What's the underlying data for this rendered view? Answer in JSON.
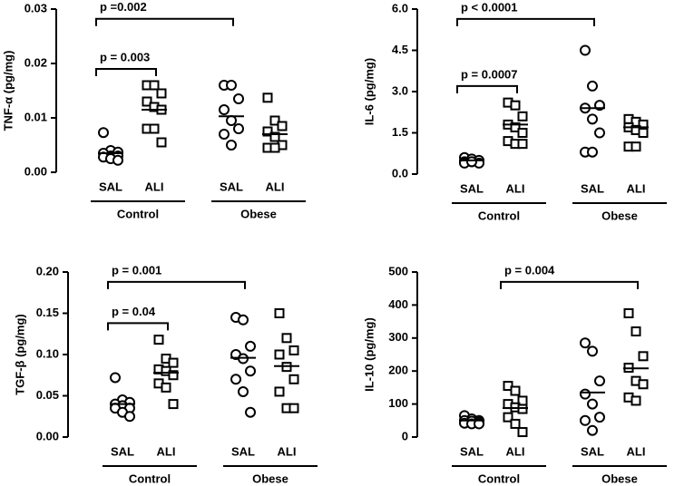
{
  "chart_data": [
    {
      "type": "scatter",
      "ylabel": "TNF-α (pg/mg)",
      "categories": [
        "SAL",
        "ALI",
        "SAL",
        "ALI"
      ],
      "groups": [
        "Control",
        "Obese"
      ],
      "markers": [
        "circle",
        "square",
        "circle",
        "square"
      ],
      "color": "#000000",
      "ylim": [
        0,
        0.03
      ],
      "yticks": [
        {
          "value": 0,
          "label": "0.00"
        },
        0.01,
        0.02,
        0.03
      ],
      "points": [
        [
          0.0073,
          0.004,
          0.0037,
          0.0035,
          0.003,
          0.003,
          0.0028,
          0.0025,
          0.0022
        ],
        [
          0.016,
          0.016,
          0.0145,
          0.013,
          0.012,
          0.0115,
          0.008,
          0.008,
          0.0055
        ],
        [
          0.016,
          0.016,
          0.0135,
          0.0115,
          0.0095,
          0.008,
          0.007,
          0.005
        ],
        [
          0.0137,
          0.0095,
          0.0085,
          0.0075,
          0.0065,
          0.005,
          0.0045,
          0.0045
        ]
      ],
      "means": [
        0.0035,
        0.0115,
        0.0103,
        0.007
      ],
      "annotations": [
        {
          "text": "p =0.002",
          "from": 0,
          "to": 2
        },
        {
          "text": "p = 0.003",
          "from": 0,
          "to": 1
        }
      ]
    },
    {
      "type": "scatter",
      "ylabel": "IL-6 (pg/mg)",
      "categories": [
        "SAL",
        "ALI",
        "SAL",
        "ALI"
      ],
      "groups": [
        "Control",
        "Obese"
      ],
      "markers": [
        "circle",
        "square",
        "circle",
        "square"
      ],
      "color": "#000000",
      "ylim": [
        0,
        6
      ],
      "yticks": [
        {
          "value": 0,
          "label": "0.0"
        },
        1.5,
        {
          "value": 3,
          "label": "3.0"
        },
        4.5,
        {
          "value": 6,
          "label": "6.0"
        }
      ],
      "points": [
        [
          0.6,
          0.55,
          0.5,
          0.45,
          0.45,
          0.4,
          0.4,
          0.45
        ],
        [
          2.6,
          2.5,
          2.1,
          1.8,
          1.7,
          1.5,
          1.2,
          1.1,
          1.1
        ],
        [
          4.5,
          3.2,
          2.5,
          2.4,
          2.0,
          1.5,
          0.8,
          0.8
        ],
        [
          2.0,
          1.9,
          1.8,
          1.7,
          1.6,
          1.5,
          1.0,
          1.0
        ]
      ],
      "means": [
        0.5,
        1.8,
        2.4,
        1.7
      ],
      "annotations": [
        {
          "text": "p < 0.0001",
          "from": 0,
          "to": 2
        },
        {
          "text": "p = 0.0007",
          "from": 0,
          "to": 1
        }
      ]
    },
    {
      "type": "scatter",
      "ylabel": "TGF-β (pg/mg)",
      "categories": [
        "SAL",
        "ALI",
        "SAL",
        "ALI"
      ],
      "groups": [
        "Control",
        "Obese"
      ],
      "markers": [
        "circle",
        "square",
        "circle",
        "square"
      ],
      "color": "#000000",
      "ylim": [
        0,
        0.2
      ],
      "yticks": [
        {
          "value": 0,
          "label": "0.00"
        },
        0.05,
        {
          "value": 0.1,
          "label": "0.10"
        },
        0.15,
        {
          "value": 0.2,
          "label": "0.20"
        }
      ],
      "points": [
        [
          0.072,
          0.045,
          0.042,
          0.04,
          0.038,
          0.035,
          0.035,
          0.03,
          0.025
        ],
        [
          0.118,
          0.095,
          0.09,
          0.082,
          0.08,
          0.075,
          0.065,
          0.06,
          0.04
        ],
        [
          0.145,
          0.142,
          0.11,
          0.1,
          0.095,
          0.08,
          0.07,
          0.055,
          0.03
        ],
        [
          0.15,
          0.12,
          0.105,
          0.1,
          0.085,
          0.07,
          0.055,
          0.035,
          0.035
        ]
      ],
      "means": [
        0.04,
        0.078,
        0.096,
        0.086
      ],
      "annotations": [
        {
          "text": "p = 0.001",
          "from": 0,
          "to": 2
        },
        {
          "text": "p = 0.04",
          "from": 0,
          "to": 1
        }
      ]
    },
    {
      "type": "scatter",
      "ylabel": "IL-10 (pg/mg)",
      "categories": [
        "SAL",
        "ALI",
        "SAL",
        "ALI"
      ],
      "groups": [
        "Control",
        "Obese"
      ],
      "markers": [
        "circle",
        "square",
        "circle",
        "square"
      ],
      "color": "#000000",
      "ylim": [
        0,
        500
      ],
      "yticks": [
        0,
        100,
        200,
        300,
        400,
        500
      ],
      "points": [
        [
          65,
          55,
          50,
          50,
          48,
          45,
          42,
          40,
          40
        ],
        [
          155,
          140,
          110,
          100,
          90,
          85,
          60,
          40,
          15
        ],
        [
          285,
          260,
          170,
          130,
          100,
          60,
          50,
          20
        ],
        [
          375,
          320,
          245,
          210,
          170,
          160,
          120,
          110
        ]
      ],
      "means": [
        50,
        88,
        135,
        208
      ],
      "annotations": [
        {
          "text": "p = 0.004",
          "from": 1,
          "to": 3
        }
      ]
    }
  ]
}
